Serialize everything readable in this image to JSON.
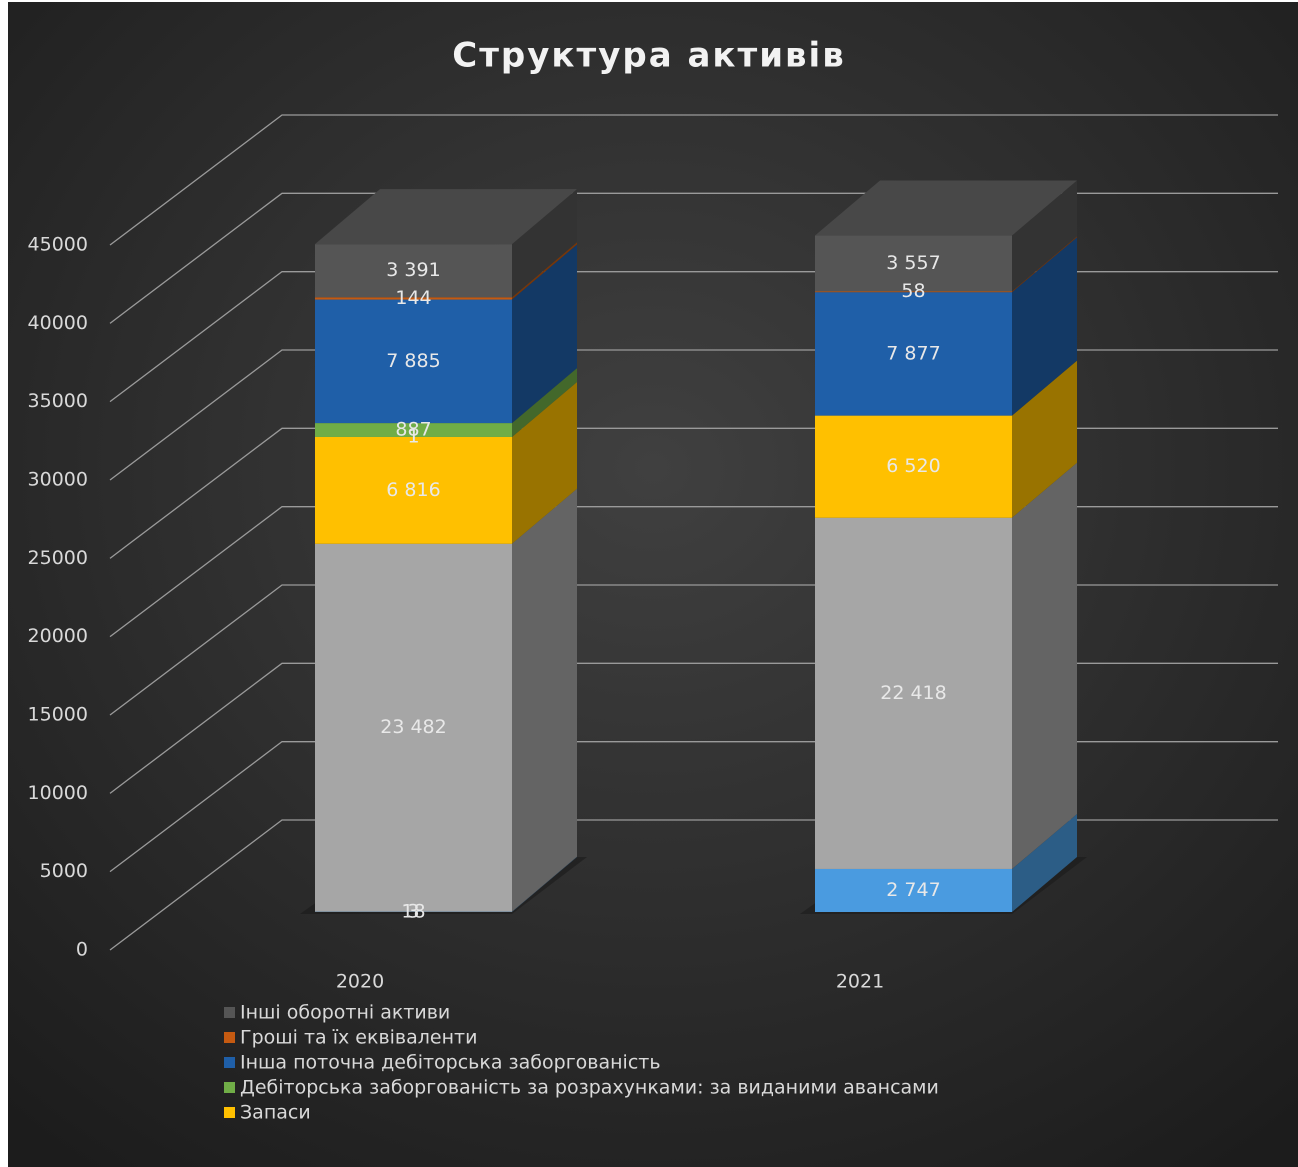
{
  "chart_data": {
    "type": "bar3d_stacked",
    "title": "Структура активів",
    "categories": [
      "2020",
      "2021"
    ],
    "series": [
      {
        "color": "#4472c4",
        "values": [
          3,
          null
        ],
        "value_labels": [
          "3",
          null
        ]
      },
      {
        "color": "#4a9be0",
        "values": [
          18,
          2747
        ],
        "value_labels": [
          "18",
          "2 747"
        ]
      },
      {
        "color": "#a6a6a6",
        "values": [
          23482,
          22418
        ],
        "value_labels": [
          "23 482",
          "22 418"
        ]
      },
      {
        "name": "Запаси",
        "color": "#ffc000",
        "values": [
          6816,
          6520
        ],
        "value_labels": [
          "6 816",
          "6 520"
        ]
      },
      {
        "color": "#8fbf4f",
        "values": [
          1,
          null
        ],
        "value_labels": [
          "1",
          null
        ]
      },
      {
        "name": "Дебіторська заборгованість за розрахунками: за виданими авансами",
        "color": "#70ad47",
        "values": [
          887,
          null
        ],
        "value_labels": [
          "887",
          null
        ]
      },
      {
        "name": "Інша поточна дебіторська заборгованість",
        "color": "#1f5fa8",
        "values": [
          7885,
          7877
        ],
        "value_labels": [
          "7 885",
          "7 877"
        ]
      },
      {
        "name": "Гроші та їх еквіваленти",
        "color": "#c55a11",
        "values": [
          144,
          58
        ],
        "value_labels": [
          "144",
          "58"
        ]
      },
      {
        "name": "Інші оборотні активи",
        "color": "#555555",
        "values": [
          3391,
          3557
        ],
        "value_labels": [
          "3 391",
          "3 557"
        ]
      }
    ],
    "ylim": [
      0,
      45000
    ],
    "yticks": [
      0,
      5000,
      10000,
      15000,
      20000,
      25000,
      30000,
      35000,
      40000,
      45000
    ],
    "grid": true,
    "legend": "bottom-left"
  }
}
